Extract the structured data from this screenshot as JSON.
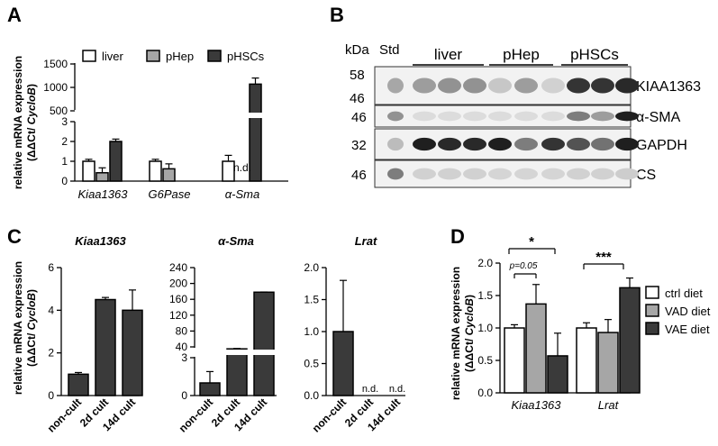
{
  "panel_labels": {
    "A": "A",
    "B": "B",
    "C": "C",
    "D": "D"
  },
  "shared": {
    "ylabel_line1": "relative mRNA expression",
    "ylabel_line2_pre": "(ΔΔCt/ ",
    "ylabel_line2_em": "CycloB",
    "ylabel_line2_post": ")",
    "nd_label": "n.d.",
    "colors": {
      "white": "#ffffff",
      "gray": "#a6a6a6",
      "dark": "#3a3a3a",
      "stroke": "#000000"
    }
  },
  "panel_b": {
    "kda_label": "kDa",
    "std_label": "Std",
    "groups": [
      "liver",
      "pHep",
      "pHSCs"
    ],
    "bands": [
      {
        "marker": "58",
        "marker2": "46",
        "name": "KIAA1363"
      },
      {
        "marker": "46",
        "name": "α-SMA"
      },
      {
        "marker": "32",
        "name": "GAPDH"
      },
      {
        "marker": "46",
        "name": "CS"
      }
    ]
  },
  "chart_data": [
    {
      "panel": "A",
      "type": "bar",
      "categories": [
        "Kiaa1363",
        "G6Pase",
        "α-Sma"
      ],
      "legend": [
        "liver",
        "pHep",
        "pHSCs"
      ],
      "legend_position": "top",
      "series": [
        {
          "name": "liver",
          "color": "white",
          "values": [
            1.0,
            1.0,
            1.0
          ],
          "err": [
            0.1,
            0.1,
            0.3
          ]
        },
        {
          "name": "pHep",
          "color": "gray",
          "values": [
            0.42,
            0.62,
            null
          ],
          "err": [
            0.25,
            0.25,
            null
          ]
        },
        {
          "name": "pHSCs",
          "color": "dark",
          "values": [
            2.0,
            null,
            1070
          ],
          "err": [
            0.12,
            null,
            130
          ]
        }
      ],
      "annotations": [
        {
          "category": "α-Sma",
          "series": "pHep",
          "text": "n.d."
        }
      ],
      "y_axis": {
        "broken": true,
        "lower_range": [
          0,
          3
        ],
        "lower_ticks": [
          "0",
          "1",
          "2",
          "3"
        ],
        "upper_range": [
          500,
          1500
        ],
        "upper_ticks": [
          "500",
          "1000",
          "1500"
        ]
      }
    },
    {
      "panel": "C1",
      "type": "bar",
      "title": "Kiaa1363",
      "categories": [
        "non-cult",
        "2d cult",
        "14d cult"
      ],
      "series": [
        {
          "color": "dark",
          "values": [
            1.0,
            4.5,
            4.0
          ],
          "err": [
            0.08,
            0.1,
            0.95
          ]
        }
      ],
      "ylim": [
        0,
        6
      ],
      "yticks": [
        "0",
        "2",
        "4",
        "6"
      ]
    },
    {
      "panel": "C2",
      "type": "bar",
      "title": "α-Sma",
      "categories": [
        "non-cult",
        "2d cult",
        "14d cult"
      ],
      "series": [
        {
          "color": "dark",
          "values": [
            1.0,
            35,
            178
          ],
          "err": [
            0.9,
            1,
            0.5
          ]
        }
      ],
      "y_axis": {
        "broken": true,
        "lower_range": [
          0,
          3
        ],
        "lower_ticks": [
          "0",
          "3"
        ],
        "upper_range": [
          40,
          240
        ],
        "upper_ticks": [
          "40",
          "80",
          "120",
          "160",
          "200",
          "240"
        ]
      }
    },
    {
      "panel": "C3",
      "type": "bar",
      "title": "Lrat",
      "categories": [
        "non-cult",
        "2d cult",
        "14d cult"
      ],
      "series": [
        {
          "color": "dark",
          "values": [
            1.0,
            null,
            null
          ],
          "err": [
            0.8,
            null,
            null
          ]
        }
      ],
      "annotations": [
        {
          "category": "2d cult",
          "text": "n.d."
        },
        {
          "category": "14d cult",
          "text": "n.d."
        }
      ],
      "ylim": [
        0,
        2
      ],
      "yticks": [
        "0.0",
        "0.5",
        "1.0",
        "1.5",
        "2.0"
      ]
    },
    {
      "panel": "D",
      "type": "bar",
      "categories": [
        "Kiaa1363",
        "Lrat"
      ],
      "legend": [
        "ctrl diet",
        "VAD diet",
        "VAE diet"
      ],
      "legend_position": "right",
      "series": [
        {
          "name": "ctrl diet",
          "color": "white",
          "values": [
            1.0,
            1.0
          ],
          "err": [
            0.05,
            0.08
          ]
        },
        {
          "name": "VAD diet",
          "color": "gray",
          "values": [
            1.37,
            0.93
          ],
          "err": [
            0.3,
            0.2
          ]
        },
        {
          "name": "VAE diet",
          "color": "dark",
          "values": [
            0.57,
            1.62
          ],
          "err": [
            0.35,
            0.15
          ]
        }
      ],
      "ylim": [
        0,
        2
      ],
      "yticks": [
        "0.0",
        "0.5",
        "1.0",
        "1.5",
        "2.0"
      ],
      "significance": [
        {
          "text": "p=0.05"
        },
        {
          "text": "*"
        },
        {
          "text": "***"
        }
      ]
    }
  ]
}
